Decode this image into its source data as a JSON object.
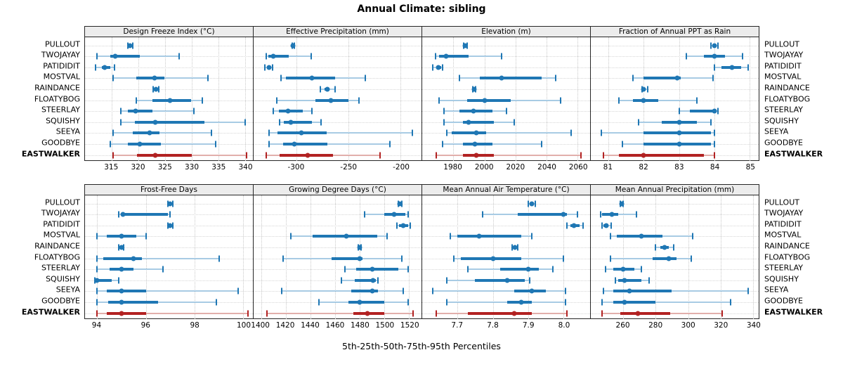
{
  "title": "Annual Climate: sibling",
  "caption": "5th-25th-50th-75th-95th Percentiles",
  "colors": {
    "blue": "#1f77b4",
    "blue_light": "#a8cbe4",
    "red": "#b22222",
    "red_light": "#e2afab",
    "grid": "#c9c9c9",
    "panel_header_bg": "#ececec",
    "border": "#262626"
  },
  "sites": [
    "PULLOUT",
    "TWOJAYAY",
    "PATIDIDIT",
    "MOSTVAL",
    "RAINDANCE",
    "FLOATYBOG",
    "STEERLAY",
    "SQUISHY",
    "SEEYA",
    "GOODBYE",
    "EASTWALKER"
  ],
  "highlight_site": "EASTWALKER",
  "chart_data": {
    "type": "dot-whisker percentile small multiples",
    "percentiles": [
      5,
      25,
      50,
      75,
      95
    ],
    "rows_of_panels": [
      [
        0,
        1,
        2,
        3
      ],
      [
        4,
        5,
        6,
        7
      ]
    ],
    "panels": [
      {
        "title": "Design Freeze Index (°C)",
        "xlim": [
          310,
          341.5
        ],
        "ticks": [
          315,
          320,
          325,
          330,
          335,
          340
        ],
        "tick_labels": [
          "315",
          "320",
          "325",
          "330",
          "335",
          "340"
        ],
        "values": {
          "PULLOUT": [
            318.0,
            318.3,
            318.5,
            318.7,
            319.0
          ],
          "TWOJAYAY": [
            312.2,
            314.7,
            315.7,
            320.3,
            327.7
          ],
          "PATIDIDIT": [
            312.0,
            313.2,
            313.7,
            314.8,
            315.5
          ],
          "MOSTVAL": [
            315.3,
            319.6,
            323.1,
            324.9,
            333.0
          ],
          "RAINDANCE": [
            322.8,
            323.1,
            323.3,
            323.6,
            323.9
          ],
          "FLOATYBOG": [
            319.6,
            322.6,
            326.0,
            329.9,
            332.0
          ],
          "STEERLAY": [
            316.7,
            318.0,
            319.5,
            322.7,
            330.4
          ],
          "SQUISHY": [
            316.7,
            319.4,
            323.2,
            332.4,
            340.0
          ],
          "SEEYA": [
            315.3,
            318.9,
            322.1,
            324.0,
            333.7
          ],
          "GOODBYE": [
            314.7,
            318.0,
            320.3,
            324.2,
            334.5
          ],
          "EASTWALKER": [
            315.3,
            319.8,
            323.2,
            330.0,
            340.3
          ]
        }
      },
      {
        "title": "Effective Precipitation (mm)",
        "xlim": [
          -341,
          -180
        ],
        "ticks": [
          -300,
          -250,
          -200
        ],
        "tick_labels": [
          "-300",
          "-250",
          "-200"
        ],
        "values": {
          "PULLOUT": [
            -304,
            -303.5,
            -303,
            -302.5,
            -302
          ],
          "TWOJAYAY": [
            -329,
            -327,
            -322,
            -307,
            -286
          ],
          "PATIDIDIT": [
            -330,
            -328,
            -326,
            -325,
            -323
          ],
          "MOSTVAL": [
            -315,
            -310,
            -285,
            -263,
            -234
          ],
          "RAINDANCE": [
            -277,
            -273,
            -270,
            -268,
            -263
          ],
          "FLOATYBOG": [
            -319,
            -282,
            -267,
            -250,
            -240
          ],
          "STEERLAY": [
            -322,
            -317,
            -308,
            -294,
            -285
          ],
          "SQUISHY": [
            -316,
            -312,
            -305,
            -285,
            -276
          ],
          "SEEYA": [
            -326,
            -318,
            -295,
            -271,
            -189
          ],
          "GOODBYE": [
            -326,
            -313,
            -302,
            -270,
            -210
          ],
          "EASTWALKER": [
            -329,
            -316,
            -289,
            -265,
            -220
          ]
        }
      },
      {
        "title": "Elevation (m)",
        "xlim": [
          1960,
          2068
        ],
        "ticks": [
          1980,
          2000,
          2020,
          2040,
          2060
        ],
        "tick_labels": [
          "1980",
          "2000",
          "2020",
          "2040",
          "2060"
        ],
        "values": {
          "PULLOUT": [
            1986.5,
            1987,
            1987.5,
            1988,
            1989
          ],
          "TWOJAYAY": [
            1968.5,
            1971,
            1975.5,
            1990,
            2011
          ],
          "PATIDIDIT": [
            1967,
            1969,
            1970.5,
            1972,
            1973
          ],
          "MOSTVAL": [
            1984,
            1997,
            2011,
            2037,
            2046
          ],
          "RAINDANCE": [
            1992.5,
            1993,
            1993.5,
            1994,
            1994.5
          ],
          "FLOATYBOG": [
            1971,
            1989,
            2000,
            2017,
            2049
          ],
          "STEERLAY": [
            1974,
            1984,
            1993,
            2005,
            2014
          ],
          "SQUISHY": [
            1974,
            1986,
            1990,
            2006,
            2019
          ],
          "SEEYA": [
            1976,
            1979,
            1995,
            2001,
            2056
          ],
          "GOODBYE": [
            1973,
            1986,
            1994,
            2005,
            2037
          ],
          "EASTWALKER": [
            1969,
            1986,
            1995,
            2006,
            2062
          ]
        }
      },
      {
        "title": "Fraction of Annual PPT as Rain",
        "xlim": [
          80.5,
          85.25
        ],
        "ticks": [
          81,
          82,
          83,
          84,
          85
        ],
        "tick_labels": [
          "81",
          "82",
          "83",
          "84",
          "85"
        ],
        "values": {
          "PULLOUT": [
            83.9,
            83.95,
            84.0,
            84.05,
            84.1
          ],
          "TWOJAYAY": [
            83.2,
            83.7,
            84.0,
            84.3,
            84.8
          ],
          "PATIDIDIT": [
            84.0,
            84.2,
            84.5,
            84.75,
            84.95
          ],
          "MOSTVAL": [
            81.7,
            82.0,
            82.95,
            83.05,
            83.95
          ],
          "RAINDANCE": [
            81.95,
            82.0,
            82.0,
            82.05,
            82.1
          ],
          "FLOATYBOG": [
            81.3,
            81.7,
            82.0,
            82.4,
            83.5
          ],
          "STEERLAY": [
            83.0,
            83.3,
            84.0,
            84.02,
            84.1
          ],
          "SQUISHY": [
            81.85,
            82.5,
            83.0,
            83.5,
            83.9
          ],
          "SEEYA": [
            80.8,
            82.0,
            83.0,
            83.9,
            84.0
          ],
          "GOODBYE": [
            81.4,
            82.0,
            83.0,
            83.9,
            84.0
          ],
          "EASTWALKER": [
            80.85,
            81.3,
            82.0,
            83.7,
            84.0
          ]
        }
      },
      {
        "title": "Frost-Free Days",
        "xlim": [
          93.5,
          100.4
        ],
        "ticks": [
          94,
          96,
          98,
          100
        ],
        "tick_labels": [
          "94",
          "96",
          "98",
          "100"
        ],
        "values": {
          "PULLOUT": [
            96.9,
            96.95,
            97.0,
            97.05,
            97.1
          ],
          "TWOJAYAY": [
            94.9,
            95.0,
            95.05,
            96.9,
            97.0
          ],
          "PATIDIDIT": [
            96.9,
            96.95,
            97.0,
            97.05,
            97.1
          ],
          "MOSTVAL": [
            94.0,
            94.4,
            95.0,
            95.6,
            96.0
          ],
          "RAINDANCE": [
            94.9,
            94.95,
            95.0,
            95.05,
            95.1
          ],
          "FLOATYBOG": [
            94.0,
            94.25,
            95.5,
            95.85,
            99.0
          ],
          "STEERLAY": [
            94.0,
            94.5,
            95.0,
            95.5,
            96.7
          ],
          "SQUISHY": [
            93.9,
            93.95,
            94.0,
            94.6,
            94.9
          ],
          "SEEYA": [
            94.0,
            94.4,
            95.0,
            96.0,
            99.8
          ],
          "GOODBYE": [
            94.0,
            94.45,
            95.0,
            96.5,
            98.9
          ],
          "EASTWALKER": [
            94.0,
            94.4,
            95.0,
            96.0,
            100.2
          ]
        }
      },
      {
        "title": "Growing Degree Days (°C)",
        "xlim": [
          1394,
          1530
        ],
        "ticks": [
          1400,
          1420,
          1440,
          1460,
          1480,
          1500,
          1520
        ],
        "tick_labels": [
          "1400",
          "1420",
          "1440",
          "1460",
          "1480",
          "1500",
          "1520"
        ],
        "values": {
          "PULLOUT": [
            1511,
            1512,
            1512.5,
            1513,
            1514
          ],
          "TWOJAYAY": [
            1484,
            1500,
            1508,
            1517,
            1519
          ],
          "PATIDIDIT": [
            1510,
            1512,
            1515,
            1519,
            1521
          ],
          "MOSTVAL": [
            1424,
            1442,
            1469,
            1494,
            1502
          ],
          "RAINDANCE": [
            1479,
            1479.5,
            1480,
            1480.5,
            1481
          ],
          "FLOATYBOG": [
            1418,
            1457,
            1480,
            1482,
            1514
          ],
          "STEERLAY": [
            1468,
            1477,
            1490,
            1511,
            1519
          ],
          "SQUISHY": [
            1465,
            1476,
            1491,
            1493,
            1495
          ],
          "SEEYA": [
            1417,
            1473,
            1490,
            1495,
            1515
          ],
          "GOODBYE": [
            1447,
            1471,
            1480,
            1500,
            1519
          ],
          "EASTWALKER": [
            1405,
            1475,
            1486,
            1500,
            1523
          ]
        }
      },
      {
        "title": "Mean Annual Air Temperature (°C)",
        "xlim": [
          7.6,
          8.075
        ],
        "ticks": [
          7.7,
          7.8,
          7.9,
          8.0
        ],
        "tick_labels": [
          "7.7",
          "7.8",
          "7.9",
          "8.0"
        ],
        "values": {
          "PULLOUT": [
            7.9,
            7.905,
            7.91,
            7.915,
            7.92
          ],
          "TWOJAYAY": [
            7.77,
            7.87,
            8.0,
            8.01,
            8.04
          ],
          "PATIDIDIT": [
            8.01,
            8.02,
            8.03,
            8.045,
            8.055
          ],
          "MOSTVAL": [
            7.68,
            7.7,
            7.76,
            7.88,
            7.91
          ],
          "RAINDANCE": [
            7.855,
            7.86,
            7.862,
            7.865,
            7.87
          ],
          "FLOATYBOG": [
            7.69,
            7.71,
            7.8,
            7.88,
            8.0
          ],
          "STEERLAY": [
            7.73,
            7.82,
            7.9,
            7.93,
            7.97
          ],
          "SQUISHY": [
            7.67,
            7.75,
            7.84,
            7.89,
            7.905
          ],
          "SEEYA": [
            7.63,
            7.86,
            7.91,
            7.95,
            8.005
          ],
          "GOODBYE": [
            7.67,
            7.84,
            7.88,
            7.91,
            8.005
          ],
          "EASTWALKER": [
            7.64,
            7.73,
            7.86,
            7.91,
            8.01
          ]
        }
      },
      {
        "title": "Mean Annual Precipitation (mm)",
        "xlim": [
          240,
          343.5
        ],
        "ticks": [
          260,
          280,
          300,
          320,
          340
        ],
        "tick_labels": [
          "260",
          "280",
          "300",
          "320",
          "340"
        ],
        "values": {
          "PULLOUT": [
            258,
            258.5,
            259,
            259.5,
            260
          ],
          "TWOJAYAY": [
            246,
            247,
            253,
            257,
            268
          ],
          "PATIDIDIT": [
            247,
            248,
            249.5,
            251,
            252.5
          ],
          "MOSTVAL": [
            252,
            256,
            271,
            284,
            303
          ],
          "RAINDANCE": [
            280,
            283,
            285.5,
            288,
            291
          ],
          "FLOATYBOG": [
            252,
            278,
            288,
            293,
            302
          ],
          "STEERLAY": [
            249,
            254,
            260,
            267,
            271
          ],
          "SQUISHY": [
            255,
            257,
            261,
            271,
            276
          ],
          "SEEYA": [
            248,
            254,
            264,
            290,
            337
          ],
          "GOODBYE": [
            247,
            254,
            261,
            280,
            326
          ],
          "EASTWALKER": [
            247,
            258,
            269,
            289,
            321
          ]
        }
      }
    ]
  }
}
